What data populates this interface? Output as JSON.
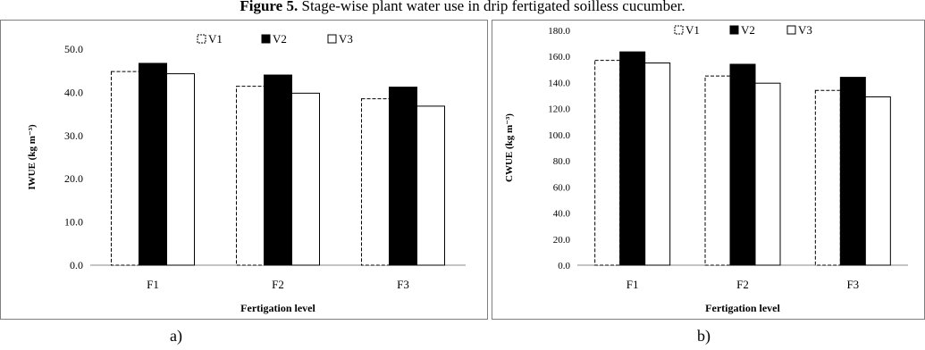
{
  "caption": {
    "number": "Figure 5.",
    "text": " Stage-wise plant water use in drip fertigated soilless cucumber."
  },
  "panel_labels": [
    "a)",
    "b)"
  ],
  "chart_data": [
    {
      "type": "bar",
      "panel": "a",
      "title": "",
      "xlabel": "Fertigation level",
      "ylabel": "IWUE (kg m⁻³)",
      "categories": [
        "F1",
        "F2",
        "F3"
      ],
      "ylim": [
        0,
        50
      ],
      "yticks": [
        "0.0",
        "10.0",
        "20.0",
        "30.0",
        "40.0",
        "50.0"
      ],
      "legend_position": "top-center",
      "series": [
        {
          "name": "V1",
          "values": [
            44.8,
            41.4,
            38.5
          ],
          "style": "dashed-outline"
        },
        {
          "name": "V2",
          "values": [
            46.7,
            44.0,
            41.2
          ],
          "style": "solid-black"
        },
        {
          "name": "V3",
          "values": [
            44.3,
            39.8,
            36.8
          ],
          "style": "white-outline"
        }
      ]
    },
    {
      "type": "bar",
      "panel": "b",
      "title": "",
      "xlabel": "Fertigation level",
      "ylabel": "CWUE (kg m⁻³)",
      "categories": [
        "F1",
        "F2",
        "F3"
      ],
      "ylim": [
        0,
        180
      ],
      "yticks": [
        "0.0",
        "20.0",
        "40.0",
        "60.0",
        "80.0",
        "100.0",
        "120.0",
        "140.0",
        "160.0",
        "180.0"
      ],
      "legend_position": "top-center",
      "series": [
        {
          "name": "V1",
          "values": [
            157,
            145,
            134
          ],
          "style": "dashed-outline"
        },
        {
          "name": "V2",
          "values": [
            163.5,
            154,
            144
          ],
          "style": "solid-black"
        },
        {
          "name": "V3",
          "values": [
            155,
            139.5,
            129
          ],
          "style": "white-outline"
        }
      ]
    }
  ]
}
